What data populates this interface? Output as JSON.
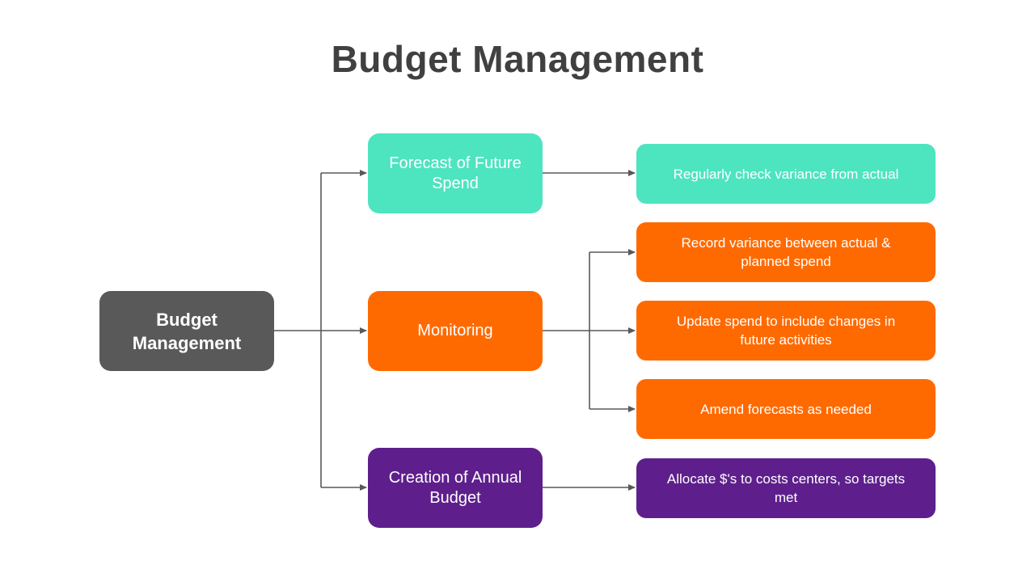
{
  "title": "Budget Management",
  "colors": {
    "root": "#595959",
    "teal": "#4de4c0",
    "orange": "#ff6a00",
    "purple": "#5e1f8c",
    "title": "#404040",
    "connector": "#595959"
  },
  "root": {
    "label": "Budget Management"
  },
  "branches": [
    {
      "label": "Forecast of Future Spend",
      "color": "teal"
    },
    {
      "label": "Monitoring",
      "color": "orange"
    },
    {
      "label": "Creation of Annual Budget",
      "color": "purple"
    }
  ],
  "leaves": [
    {
      "label": "Regularly check variance from actual",
      "color": "teal"
    },
    {
      "label": "Record variance between actual & planned spend",
      "color": "orange"
    },
    {
      "label": "Update spend to include changes in future activities",
      "color": "orange"
    },
    {
      "label": "Amend forecasts as needed",
      "color": "orange"
    },
    {
      "label": "Allocate $'s to costs centers, so targets met",
      "color": "purple"
    }
  ]
}
